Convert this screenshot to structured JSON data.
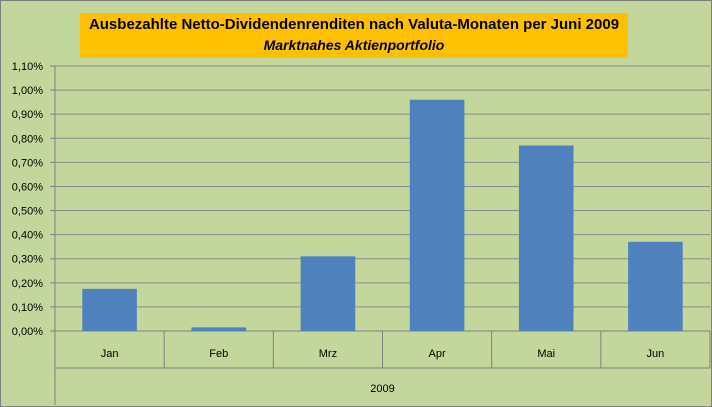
{
  "chart_data": {
    "type": "bar",
    "title": "Ausbezahlte Netto-Dividendenrenditen nach Valuta-Monaten per Juni 2009",
    "subtitle": "Marktnahes Aktienportfolio",
    "categories": [
      "Jan",
      "Feb",
      "Mrz",
      "Apr",
      "Mai",
      "Jun"
    ],
    "group_label": "2009",
    "values": [
      0.175,
      0.015,
      0.31,
      0.96,
      0.77,
      0.37
    ],
    "y_unit": "%",
    "ylim": [
      0,
      1.1
    ],
    "y_ticks": [
      "0,00%",
      "0,10%",
      "0,20%",
      "0,30%",
      "0,40%",
      "0,50%",
      "0,60%",
      "0,70%",
      "0,80%",
      "0,90%",
      "1,00%",
      "1,10%"
    ],
    "grid": true,
    "legend": "none",
    "bar_color": "#4f81bd",
    "background_color": "#c3d69b",
    "title_background_color": "#ffc000"
  }
}
